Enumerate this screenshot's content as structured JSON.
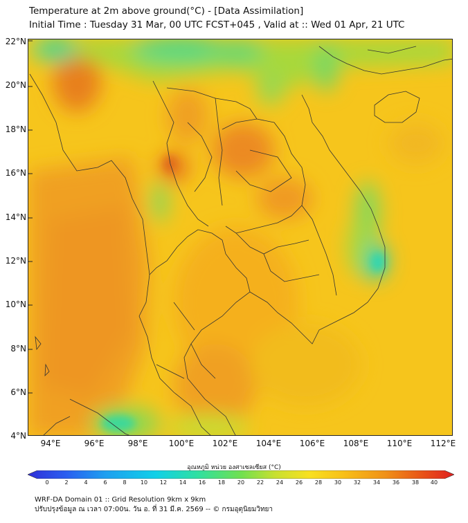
{
  "title": {
    "line1": "Temperature at 2m above ground(°C) - [Data Assimilation]",
    "line2": "Initial Time : Tuesday 31 Mar, 00 UTC FCST+045 , Valid at :: Wed 01 Apr, 21 UTC"
  },
  "map": {
    "lat_labels": [
      "22°N",
      "20°N",
      "18°N",
      "16°N",
      "14°N",
      "12°N",
      "10°N",
      "8°N",
      "6°N",
      "4°N"
    ],
    "lon_labels": [
      "94°E",
      "96°E",
      "98°E",
      "100°E",
      "102°E",
      "104°E",
      "106°E",
      "108°E",
      "110°E",
      "112°E"
    ],
    "colors": {
      "background": "#f5c21a",
      "warm": "#f0a020",
      "hot": "#e8771e",
      "mild": "#c8d82a",
      "cool": "#7fd84a",
      "cold": "#3ad3a0",
      "border_line": "#333333"
    }
  },
  "colorbar": {
    "title": "อุณหภูมิ หน่วย องศาเซลเซียส (°C)",
    "ticks": [
      "0",
      "2",
      "4",
      "6",
      "8",
      "10",
      "12",
      "14",
      "16",
      "18",
      "20",
      "22",
      "24",
      "26",
      "28",
      "30",
      "32",
      "34",
      "36",
      "38",
      "40"
    ],
    "colors": [
      "#3030d8",
      "#2a5ef0",
      "#1e9ef0",
      "#10d0e8",
      "#30e0a0",
      "#70e050",
      "#c8e030",
      "#f8e020",
      "#f8c018",
      "#f09018",
      "#e85018",
      "#e02020"
    ]
  },
  "footer": {
    "line1": "WRF-DA Domain 01 :: Grid Resolution 9km x 9km",
    "line2": "ปรับปรุงข้อมูล ณ เวลา 07:00น. วัน อ. ที่ 31 มี.ค. 2569 -- © กรมอุตุนิยมวิทยา"
  }
}
